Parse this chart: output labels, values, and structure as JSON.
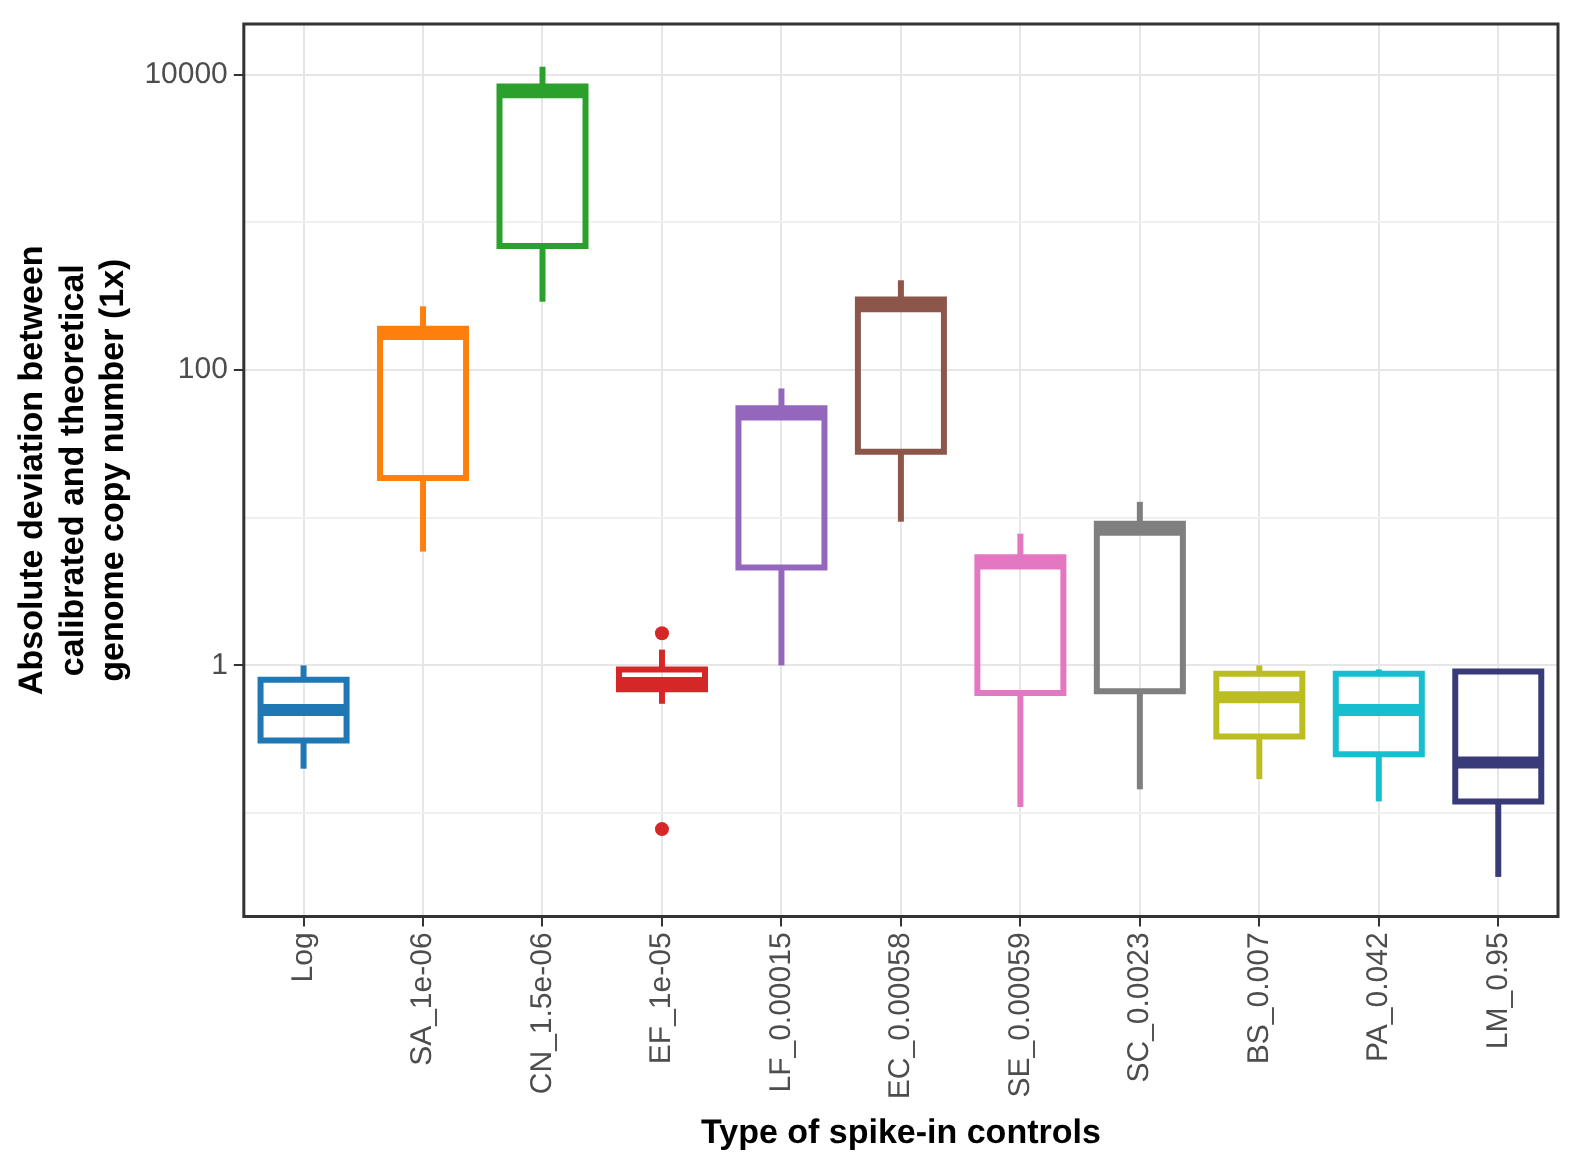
{
  "chart_data": {
    "type": "box",
    "xlabel": "Type of spike-in controls",
    "ylabel": "Absolute deviation between calibrated and theoretical genome copy number (1x)",
    "categories": [
      "Log",
      "SA_1e-06",
      "CN_1.5e-06",
      "EF_1e-05",
      "LF_0.00015",
      "EC_0.00058",
      "SE_0.00059",
      "SC_0.0023",
      "BS_0.007",
      "PA_0.042",
      "LM_0.95"
    ],
    "colors": [
      "#1f77b4",
      "#ff7f0e",
      "#2ca02c",
      "#d62728",
      "#9467bd",
      "#8c564b",
      "#e377c2",
      "#7f7f7f",
      "#bcbd22",
      "#17becf",
      "#393b79"
    ],
    "boxes": [
      {
        "low": 0.2,
        "q1": 0.31,
        "median": 0.5,
        "q3": 0.8,
        "high": 1
      },
      {
        "low": 5.9,
        "q1": 18.6,
        "median": 175,
        "q3": 190,
        "high": 270
      },
      {
        "low": 290,
        "q1": 690,
        "median": 7600,
        "q3": 8300,
        "high": 11300
      },
      {
        "low": 0.55,
        "q1": 0.69,
        "median": 0.76,
        "q3": 0.94,
        "high": 1.28,
        "outliers": [
          1.65,
          0.078
        ]
      },
      {
        "low": 1,
        "q1": 4.6,
        "median": 50,
        "q3": 55,
        "high": 75
      },
      {
        "low": 9.4,
        "q1": 28,
        "median": 270,
        "q3": 300,
        "high": 405
      },
      {
        "low": 0.11,
        "q1": 0.65,
        "median": 4.9,
        "q3": 5.4,
        "high": 7.8
      },
      {
        "low": 0.145,
        "q1": 0.67,
        "median": 8.3,
        "q3": 9.1,
        "high": 12.8
      },
      {
        "low": 0.17,
        "q1": 0.33,
        "median": 0.61,
        "q3": 0.88,
        "high": 1
      },
      {
        "low": 0.12,
        "q1": 0.25,
        "median": 0.5,
        "q3": 0.88,
        "high": 0.94
      },
      {
        "low": 0.037,
        "q1": 0.12,
        "median": 0.22,
        "q3": 0.91,
        "high": 0.94
      }
    ],
    "log": "y",
    "ylim": [
      0.02,
      22000
    ],
    "yticks": [
      {
        "value": 0.1,
        "label": null
      },
      1,
      {
        "value": 10,
        "label": null
      },
      100,
      {
        "value": 1000,
        "label": null
      },
      10000
    ],
    "grid": true,
    "legend": false
  }
}
